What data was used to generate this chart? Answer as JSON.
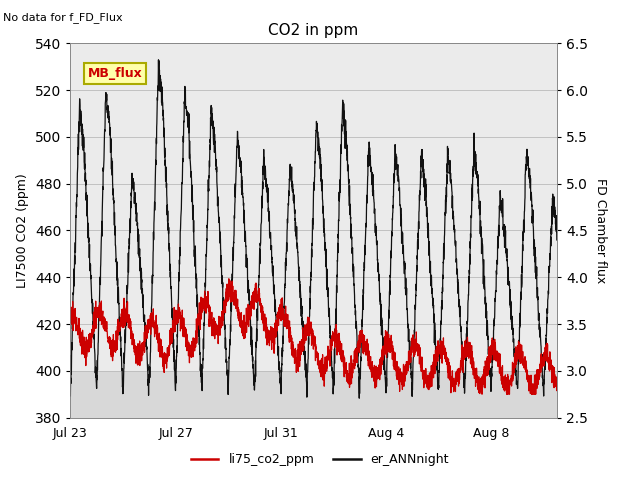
{
  "title": "CO2 in ppm",
  "top_left_text": "No data for f_FD_Flux",
  "ylabel_left": "LI7500 CO2 (ppm)",
  "ylabel_right": "FD Chamber flux",
  "ylim_left": [
    380,
    540
  ],
  "ylim_right": [
    2.5,
    6.5
  ],
  "yticks_left": [
    380,
    400,
    420,
    440,
    460,
    480,
    500,
    520,
    540
  ],
  "yticks_right": [
    2.5,
    3.0,
    3.5,
    4.0,
    4.5,
    5.0,
    5.5,
    6.0,
    6.5
  ],
  "xtick_labels": [
    "Jul 23",
    "Jul 27",
    "Jul 31",
    "Aug 4",
    "Aug 8"
  ],
  "xtick_pos": [
    0,
    4,
    8,
    12,
    16
  ],
  "xlim": [
    0,
    18.5
  ],
  "legend_entries": [
    "li75_co2_ppm",
    "er_ANNnight"
  ],
  "legend_colors": [
    "#cc0000",
    "#111111"
  ],
  "background_color": "#ffffff",
  "plot_bg_dark": "#d8d8d8",
  "plot_bg_light": "#ebebeb",
  "band_threshold": 400,
  "mb_flux_text": "MB_flux",
  "mb_flux_text_color": "#cc0000",
  "mb_flux_box_color": "#ffffaa",
  "mb_flux_border_color": "#aaaa00"
}
